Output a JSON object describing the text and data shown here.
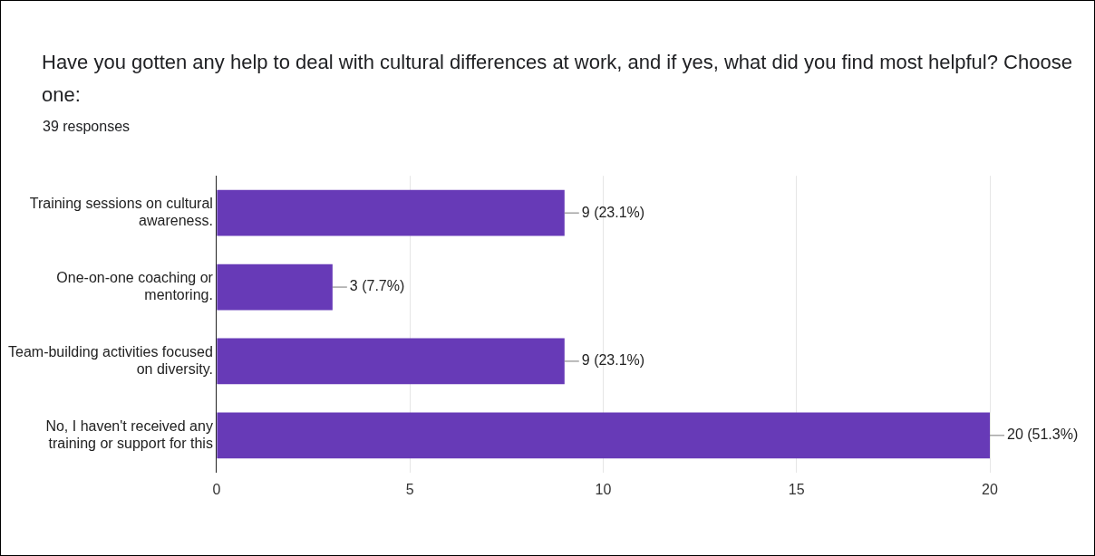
{
  "chart_data": {
    "type": "bar",
    "orientation": "horizontal",
    "title": "Have you gotten any help to deal with cultural differences at work, and if yes, what did you find most helpful? Choose one:",
    "subtitle": "39 responses",
    "categories": [
      "Training sessions on cultural awareness.",
      "One-on-one coaching or mentoring.",
      "Team-building activities focused on diversity.",
      "No, I haven't received any training or support for this"
    ],
    "values": [
      9,
      3,
      9,
      20
    ],
    "value_labels": [
      "9 (23.1%)",
      "3 (7.7%)",
      "9 (23.1%)",
      "20 (51.3%)"
    ],
    "color": "#673ab7",
    "xlim": [
      0,
      20
    ],
    "xticks": [
      0,
      5,
      10,
      15,
      20
    ],
    "grid": "x",
    "legend": false
  }
}
